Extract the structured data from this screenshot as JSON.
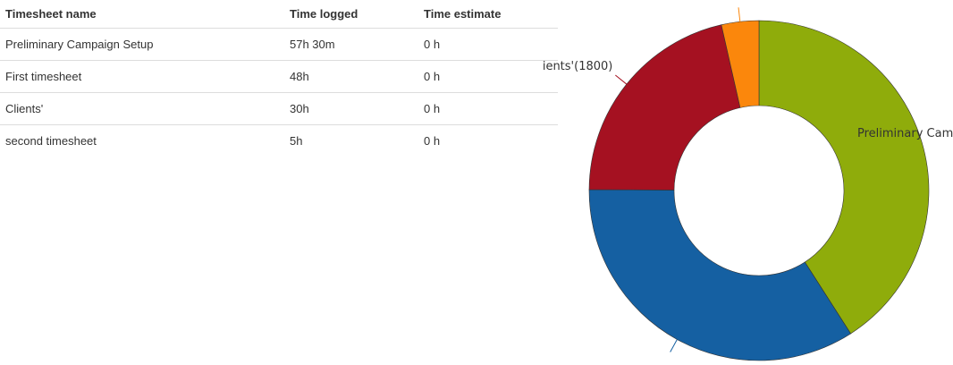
{
  "table": {
    "headers": [
      "Timesheet name",
      "Time logged",
      "Time estimate"
    ],
    "rows": [
      [
        "Preliminary Campaign Setup",
        "57h 30m",
        "0 h"
      ],
      [
        "First timesheet",
        "48h",
        "0 h"
      ],
      [
        "Clients'",
        "30h",
        "0 h"
      ],
      [
        "second timesheet",
        "5h",
        "0 h"
      ]
    ]
  },
  "chart_data": {
    "type": "pie",
    "labels": [
      "Preliminary Campaign Setup",
      "First timesheet",
      "Clients'",
      "second timesheet"
    ],
    "values": [
      3450,
      2880,
      1800,
      300
    ],
    "colors": [
      "#8fac0b",
      "#1560a2",
      "#a51121",
      "#fb870c"
    ],
    "data_labels": [
      "Preliminary Cam",
      "",
      "ients'(1800)",
      ""
    ]
  }
}
